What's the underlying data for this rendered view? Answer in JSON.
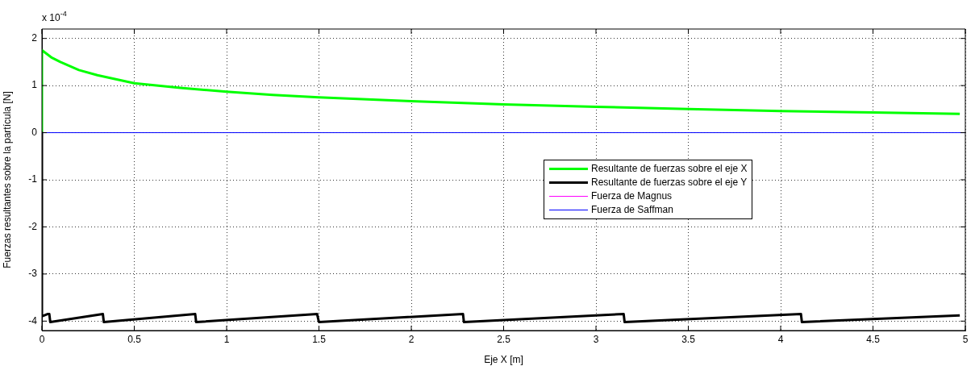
{
  "chart_data": {
    "type": "line",
    "xlabel": "Eje X [m]",
    "ylabel": "Fuerzas resultantes sobre la partícula [N]",
    "annotations": [
      "x 10$^{-4}$"
    ],
    "xlim": [
      0,
      5
    ],
    "xticks": [
      0,
      0.5,
      1,
      1.5,
      2,
      2.5,
      3,
      3.5,
      4,
      4.5,
      5
    ],
    "ylim": [
      -4.2,
      2.2
    ],
    "yticks": [
      -4,
      -3,
      -2,
      -1,
      0,
      1,
      2
    ],
    "grid": true,
    "legend": "center",
    "marker": "none",
    "line_style": "solid",
    "series": [
      {
        "name": "Resultante de fuerzas sobre el eje X",
        "color": "#00ff00",
        "x": [
          0,
          0,
          0.01,
          0.05,
          0.1,
          0.2,
          0.3,
          0.5,
          0.75,
          1,
          1.25,
          1.5,
          2,
          2.5,
          3,
          3.5,
          4,
          4.5,
          4.97
        ],
        "values": [
          0,
          1.75,
          1.72,
          1.6,
          1.5,
          1.33,
          1.22,
          1.05,
          0.95,
          0.87,
          0.8,
          0.75,
          0.67,
          0.6,
          0.55,
          0.5,
          0.46,
          0.43,
          0.4
        ]
      },
      {
        "name": "Resultante de fuerzas sobre el eje Y",
        "color": "#000000",
        "x": [
          0,
          0,
          0.03,
          0.04,
          0.045,
          0.33,
          0.335,
          0.83,
          0.835,
          1.49,
          1.5,
          2.28,
          2.285,
          3.15,
          3.155,
          4.11,
          4.115,
          4.97
        ],
        "values": [
          0,
          -3.9,
          -3.85,
          -3.85,
          -4.02,
          -3.85,
          -4.02,
          -3.85,
          -4.02,
          -3.85,
          -4.02,
          -3.85,
          -4.02,
          -3.85,
          -4.02,
          -3.85,
          -4.02,
          -3.88
        ]
      },
      {
        "name": "Fuerza de Magnus",
        "color": "#ff00ff"
      },
      {
        "name": "Fuerza de Saffman",
        "color": "#0000ff",
        "x": [
          0,
          5
        ],
        "values": [
          0,
          0
        ]
      }
    ]
  }
}
